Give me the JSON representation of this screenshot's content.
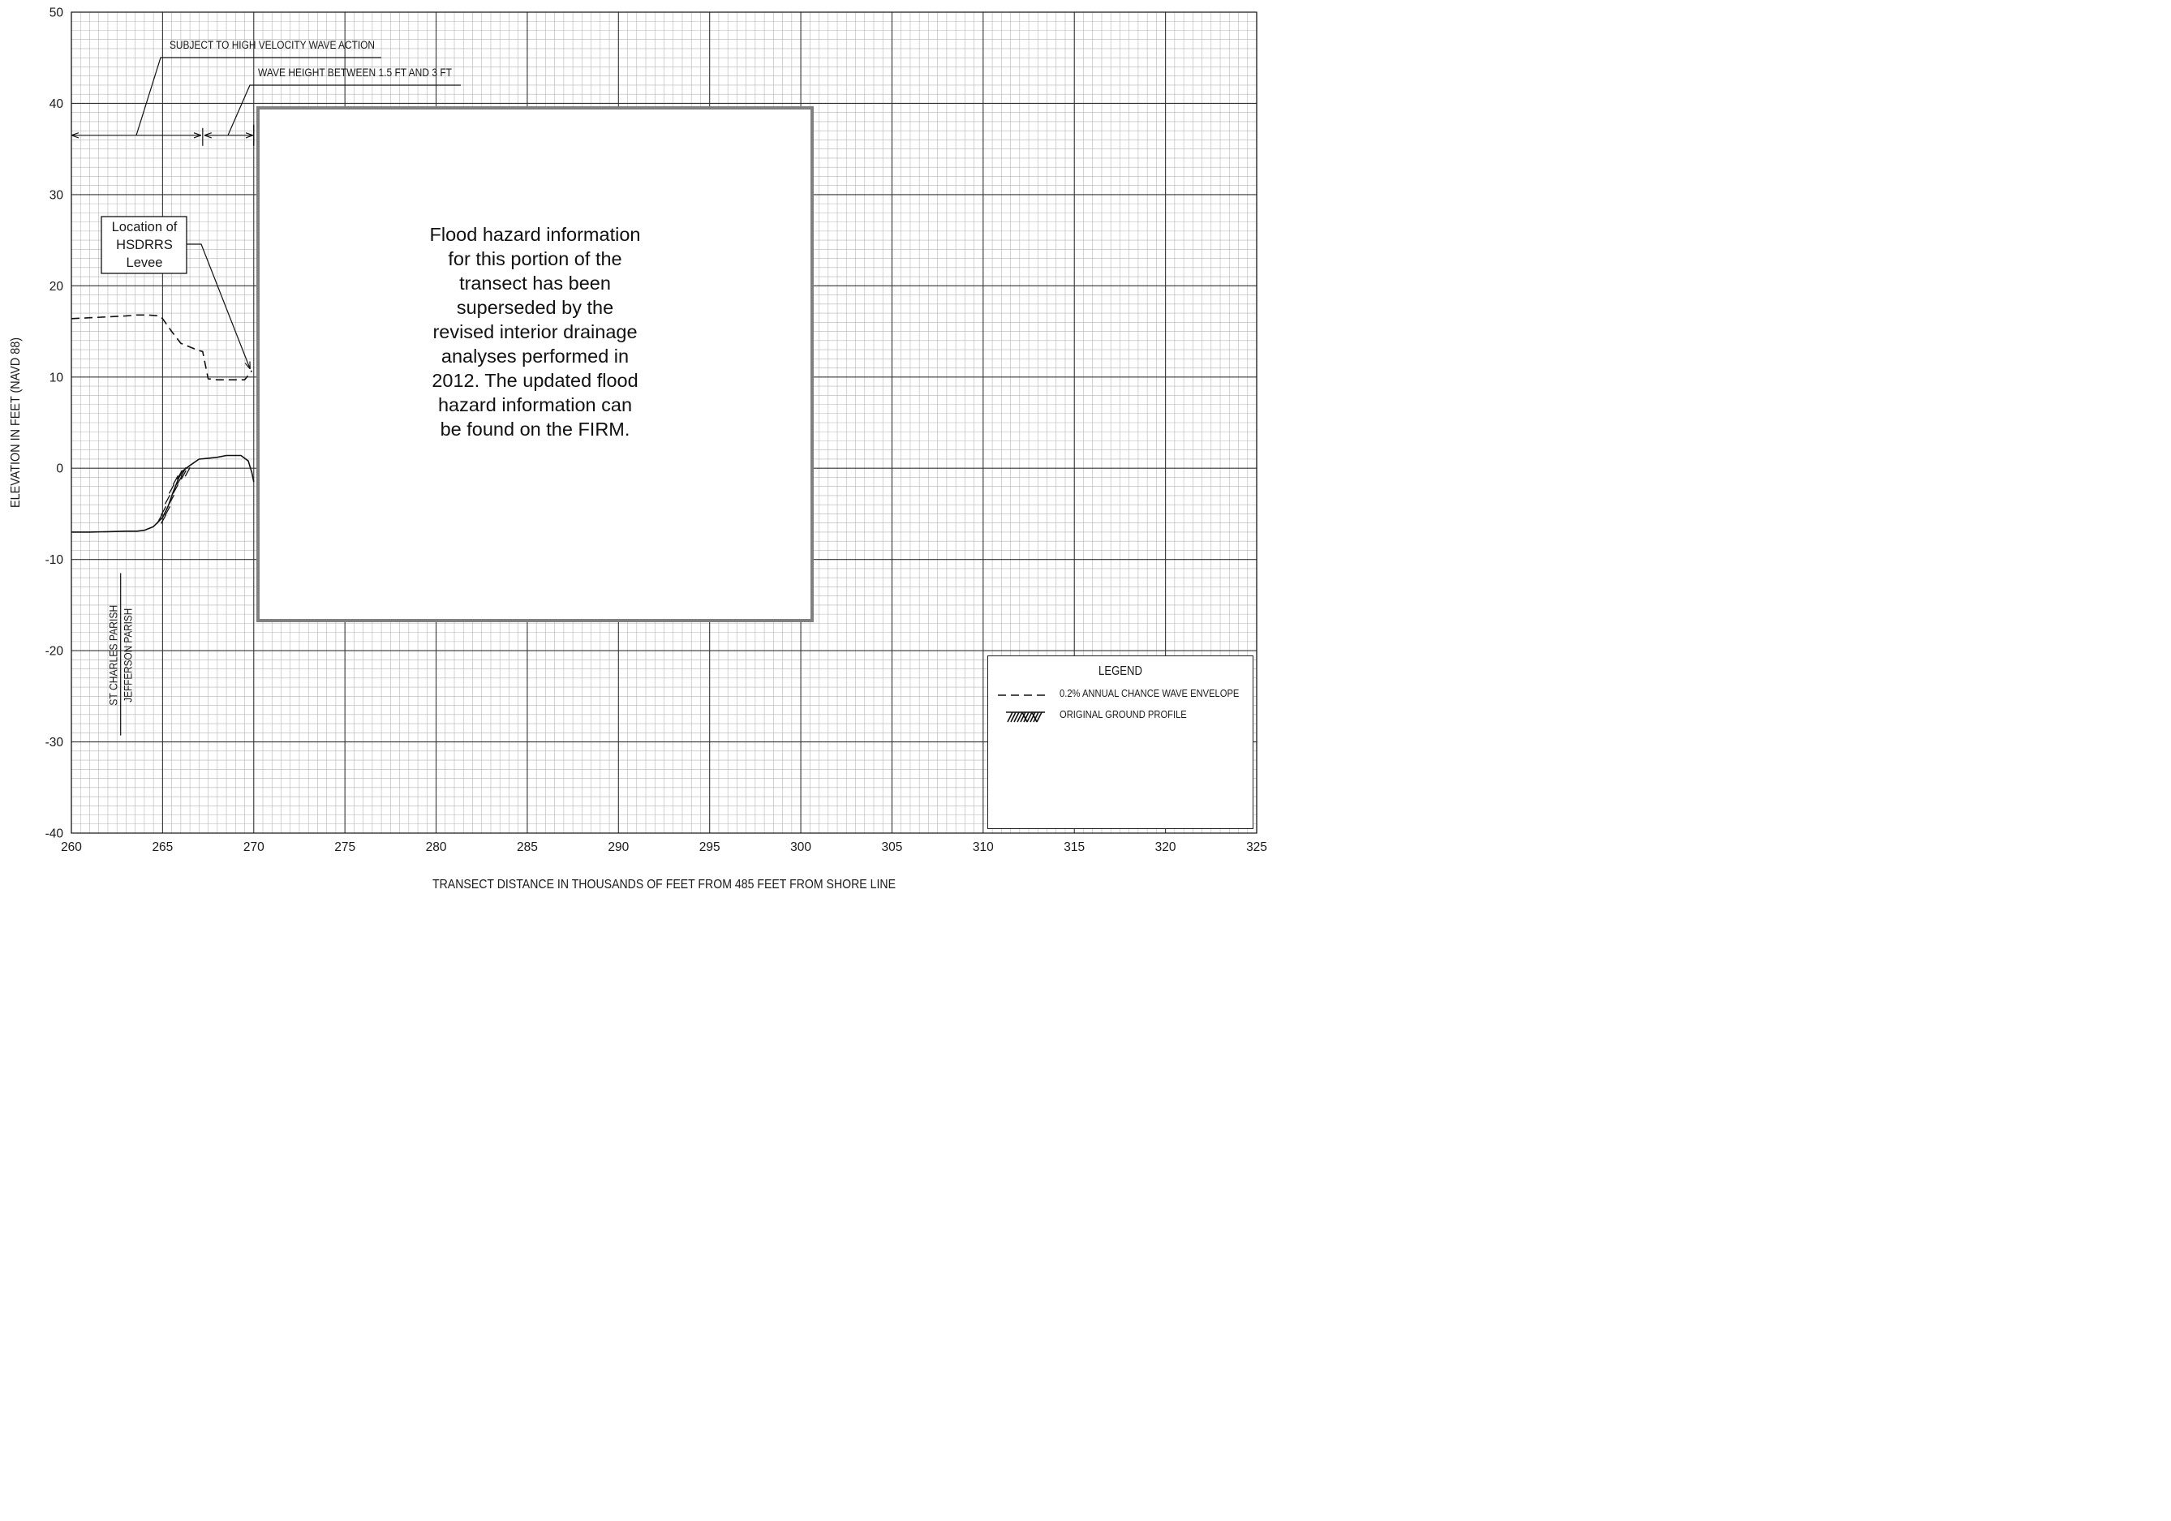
{
  "chart_data": {
    "type": "line",
    "title": "",
    "xlabel": "TRANSECT DISTANCE IN THOUSANDS OF FEET FROM 485 FEET FROM SHORE LINE",
    "ylabel": "ELEVATION IN FEET (NAVD 88)",
    "xlim": [
      260,
      325
    ],
    "ylim": [
      -40,
      50
    ],
    "xticks": [
      260,
      265,
      270,
      275,
      280,
      285,
      290,
      295,
      300,
      305,
      310,
      315,
      320,
      325
    ],
    "yticks": [
      -40,
      -30,
      -20,
      -10,
      0,
      10,
      20,
      30,
      40,
      50
    ],
    "grid": "major every 5 x / 10 y, minor every 0.5 x / 1 y",
    "legend_position": "bottom-right",
    "series": [
      {
        "name": "0.2% ANNUAL CHANCE WAVE ENVELOPE",
        "style": "dashed",
        "x": [
          260.0,
          261.0,
          262.0,
          263.0,
          263.6,
          264.2,
          264.8,
          265.0,
          265.5,
          266.0,
          266.5,
          267.0,
          267.2,
          267.5,
          268.0,
          269.0,
          269.5,
          269.9
        ],
        "y": [
          16.4,
          16.5,
          16.6,
          16.7,
          16.8,
          16.8,
          16.7,
          16.4,
          15.0,
          13.7,
          13.3,
          12.9,
          12.8,
          9.8,
          9.7,
          9.7,
          9.7,
          10.7
        ]
      },
      {
        "name": "ORIGINAL GROUND PROFILE",
        "style": "solid",
        "x": [
          260.0,
          261.0,
          262.0,
          263.0,
          263.6,
          264.0,
          264.5,
          265.0,
          265.3,
          265.6,
          265.9,
          266.1,
          266.5,
          267.0,
          267.5,
          268.0,
          268.5,
          269.0,
          269.3,
          269.7,
          269.9,
          270.0
        ],
        "y": [
          -7.0,
          -7.0,
          -6.95,
          -6.9,
          -6.9,
          -6.8,
          -6.4,
          -5.4,
          -4.2,
          -2.5,
          -1.0,
          -0.3,
          0.3,
          1.0,
          1.1,
          1.2,
          1.4,
          1.4,
          1.4,
          0.8,
          -0.5,
          -1.5
        ]
      }
    ],
    "hatch_zone": {
      "x": [
        265.0,
        266.5
      ],
      "label": "ORIGINAL GROUND PROFILE"
    },
    "annotations": {
      "velocity_zone": "SUBJECT TO HIGH VELOCITY WAVE ACTION",
      "velocity_zone_x": [
        260,
        267.2
      ],
      "wave_height_zone": "WAVE HEIGHT BETWEEN 1.5 FT AND 3 FT",
      "wave_height_zone_x": [
        267.2,
        270
      ],
      "dimension_elevation": 36.5,
      "levee_callout": "Location of HSDRRS Levee",
      "levee_callout_lines": [
        "Location of",
        "HSDRRS",
        "Levee"
      ],
      "levee_x": 269.8,
      "levee_y": 10.7,
      "parish_line_x": 262.7,
      "parish_left": "ST CHARLES PARISH",
      "parish_right": "JEFFERSON PARISH"
    },
    "notice": {
      "lines": [
        "Flood hazard information",
        "for this portion of the",
        "transect has been",
        "superseded by the",
        "revised interior drainage",
        "analyses performed in",
        "2012. The updated flood",
        "hazard information can",
        "be found on the FIRM."
      ]
    },
    "legend": {
      "title": "LEGEND",
      "items": [
        {
          "label": "0.2% ANNUAL CHANCE WAVE ENVELOPE",
          "swatch": "dashed-line"
        },
        {
          "label": "ORIGINAL GROUND PROFILE",
          "swatch": "hatch-symbol"
        }
      ]
    }
  }
}
